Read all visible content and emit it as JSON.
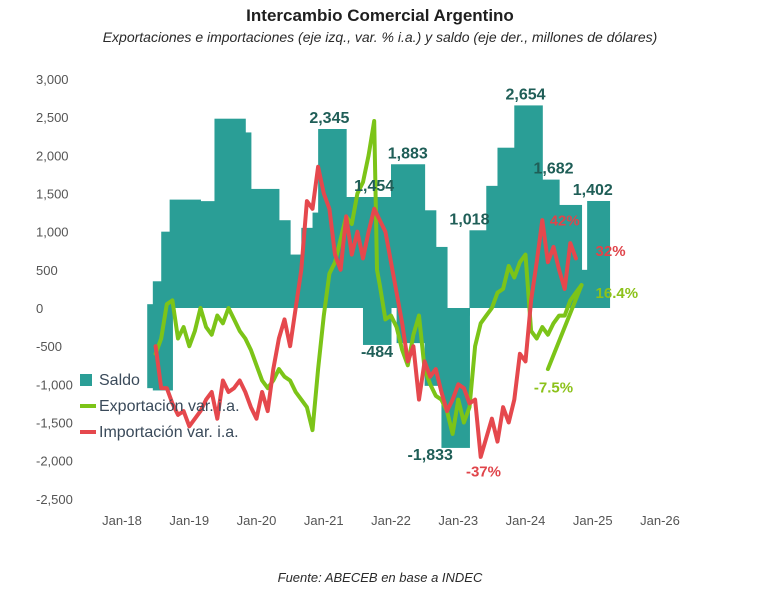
{
  "title": "Intercambio Comercial Argentino",
  "subtitle": "Exportaciones e importaciones (eje izq., var. % i.a.) y saldo (eje der., millones de dólares)",
  "source": "Fuente: ABECEB en base a INDEC",
  "chart_data": {
    "type": "bar+line",
    "title": "Intercambio Comercial Argentino",
    "subtitle": "Exportaciones e importaciones (eje izq., var. % i.a.) y saldo (eje der., millones de dólares)",
    "ylim": [
      -2500,
      3000
    ],
    "yticks": [
      3000,
      2500,
      2000,
      1500,
      1000,
      500,
      0,
      -500,
      -1000,
      -1500,
      -2000,
      -2500
    ],
    "ytick_labels": [
      "3,000",
      "2,500",
      "2,000",
      "1,500",
      "1,000",
      "500",
      "0",
      "-500",
      "-1,000",
      "-1,500",
      "-2,000",
      "-2,500"
    ],
    "xticks": [
      "Jan-18",
      "Jan-19",
      "Jan-20",
      "Jan-21",
      "Jan-22",
      "Jan-23",
      "Jan-24",
      "Jan-25",
      "Jan-26"
    ],
    "xlim_months": [
      0,
      96
    ],
    "grid": false,
    "legend_position": "left-middle",
    "colors": {
      "saldo": "#2a9e96",
      "exportacion": "#7cc418",
      "importacion": "#e5484d",
      "saldo_label": "#1f5e57"
    },
    "series": [
      {
        "name": "Saldo",
        "kind": "step-bar",
        "note": "segments: [start_month_since_Jan-18, end_month, value in USD millions]",
        "segments": [
          [
            4.5,
            5.5,
            -1050
          ],
          [
            5.5,
            9,
            -1080
          ],
          [
            4.5,
            5.5,
            50
          ],
          [
            5.5,
            7,
            350
          ],
          [
            7,
            8.5,
            1000
          ],
          [
            8.5,
            14,
            1420
          ],
          [
            14,
            16.5,
            1400
          ],
          [
            16.5,
            22,
            2480
          ],
          [
            22,
            23,
            2300
          ],
          [
            23,
            28,
            1560
          ],
          [
            28,
            30,
            1150
          ],
          [
            30,
            32,
            700
          ],
          [
            32,
            34,
            1050
          ],
          [
            34,
            35,
            1250
          ],
          [
            35,
            40,
            2345
          ],
          [
            40,
            42,
            1454
          ],
          [
            42,
            48,
            1454
          ],
          [
            38,
            42,
            0
          ],
          [
            43,
            45,
            -484
          ],
          [
            45,
            48,
            -484
          ],
          [
            48,
            54,
            1883
          ],
          [
            54,
            56,
            1280
          ],
          [
            56,
            58,
            800
          ],
          [
            58,
            62,
            -100
          ],
          [
            53,
            58,
            0
          ],
          [
            49,
            54,
            -460
          ],
          [
            54,
            57,
            -1020
          ],
          [
            57,
            62,
            -1833
          ],
          [
            62,
            65,
            1018
          ],
          [
            65,
            67,
            1600
          ],
          [
            67,
            70,
            2100
          ],
          [
            70,
            75,
            2654
          ],
          [
            75,
            78,
            1682
          ],
          [
            78,
            82,
            1350
          ],
          [
            82,
            83,
            500
          ],
          [
            83,
            87,
            1402
          ]
        ]
      },
      {
        "name": "Exportación var. i.a.",
        "kind": "line",
        "points": [
          [
            6,
            -600
          ],
          [
            7,
            -400
          ],
          [
            8,
            50
          ],
          [
            9,
            100
          ],
          [
            10,
            -400
          ],
          [
            11,
            -250
          ],
          [
            12,
            -500
          ],
          [
            13,
            -300
          ],
          [
            14,
            0
          ],
          [
            15,
            -250
          ],
          [
            16,
            -350
          ],
          [
            17,
            -100
          ],
          [
            18,
            -200
          ],
          [
            19,
            0
          ],
          [
            20,
            -150
          ],
          [
            21,
            -300
          ],
          [
            22,
            -400
          ],
          [
            23,
            -550
          ],
          [
            24,
            -750
          ],
          [
            25,
            -950
          ],
          [
            26,
            -1050
          ],
          [
            27,
            -950
          ],
          [
            28,
            -800
          ],
          [
            29,
            -900
          ],
          [
            30,
            -950
          ],
          [
            31,
            -1100
          ],
          [
            32,
            -1200
          ],
          [
            33,
            -1300
          ],
          [
            34,
            -1600
          ],
          [
            35,
            -800
          ],
          [
            36,
            -100
          ],
          [
            37,
            450
          ],
          [
            38,
            600
          ],
          [
            39,
            900
          ],
          [
            40,
            1200
          ],
          [
            41,
            1100
          ],
          [
            42,
            1500
          ],
          [
            43,
            1650
          ],
          [
            44,
            2000
          ],
          [
            45,
            2450
          ],
          [
            45.5,
            500
          ],
          [
            46,
            300
          ],
          [
            47,
            -150
          ],
          [
            48,
            -100
          ],
          [
            49,
            -250
          ],
          [
            50,
            -550
          ],
          [
            51,
            -750
          ],
          [
            52,
            -350
          ],
          [
            53,
            -100
          ],
          [
            54,
            -800
          ],
          [
            55,
            -1000
          ],
          [
            56,
            -1150
          ],
          [
            57,
            -1200
          ],
          [
            58,
            -1350
          ],
          [
            59,
            -1650
          ],
          [
            60,
            -1200
          ],
          [
            61,
            -1500
          ],
          [
            62,
            -1300
          ],
          [
            63,
            -500
          ],
          [
            64,
            -200
          ],
          [
            65,
            -100
          ],
          [
            66,
            0
          ],
          [
            67,
            200
          ],
          [
            68,
            250
          ],
          [
            69,
            550
          ],
          [
            70,
            400
          ],
          [
            71,
            600
          ],
          [
            72,
            700
          ],
          [
            73,
            -300
          ],
          [
            74,
            -400
          ],
          [
            75,
            -250
          ],
          [
            76,
            -350
          ],
          [
            77,
            -200
          ],
          [
            78,
            -100
          ],
          [
            79,
            -100
          ],
          [
            80,
            100
          ],
          [
            81,
            200
          ],
          [
            82,
            300
          ]
        ],
        "end_label": "16.4%",
        "min_label": "-7.5%"
      },
      {
        "name": "Importación var. i.a.",
        "kind": "line",
        "points": [
          [
            6,
            -500
          ],
          [
            7,
            -1050
          ],
          [
            8,
            -1050
          ],
          [
            9,
            -1250
          ],
          [
            10,
            -1400
          ],
          [
            11,
            -1350
          ],
          [
            12,
            -1550
          ],
          [
            13,
            -1450
          ],
          [
            14,
            -1350
          ],
          [
            15,
            -1200
          ],
          [
            16,
            -1100
          ],
          [
            17,
            -1450
          ],
          [
            18,
            -950
          ],
          [
            19,
            -1100
          ],
          [
            20,
            -1050
          ],
          [
            21,
            -950
          ],
          [
            22,
            -1100
          ],
          [
            23,
            -1300
          ],
          [
            24,
            -1450
          ],
          [
            25,
            -1100
          ],
          [
            26,
            -1350
          ],
          [
            27,
            -800
          ],
          [
            28,
            -400
          ],
          [
            29,
            -150
          ],
          [
            30,
            -500
          ],
          [
            31,
            0
          ],
          [
            32,
            500
          ],
          [
            33,
            1400
          ],
          [
            34,
            1300
          ],
          [
            35,
            1850
          ],
          [
            36,
            1500
          ],
          [
            37,
            1300
          ],
          [
            38,
            700
          ],
          [
            39,
            500
          ],
          [
            40,
            1200
          ],
          [
            41,
            700
          ],
          [
            42,
            1000
          ],
          [
            43,
            650
          ],
          [
            44,
            1000
          ],
          [
            45,
            1300
          ],
          [
            46,
            1150
          ],
          [
            47,
            1000
          ],
          [
            48,
            600
          ],
          [
            49,
            200
          ],
          [
            50,
            -200
          ],
          [
            51,
            -700
          ],
          [
            52,
            -500
          ],
          [
            53,
            -1200
          ],
          [
            54,
            -700
          ],
          [
            55,
            -900
          ],
          [
            56,
            -800
          ],
          [
            57,
            -1100
          ],
          [
            58,
            -1350
          ],
          [
            59,
            -1200
          ],
          [
            60,
            -1000
          ],
          [
            61,
            -1050
          ],
          [
            62,
            -1250
          ],
          [
            63,
            -1200
          ],
          [
            64,
            -1950
          ],
          [
            65,
            -1700
          ],
          [
            66,
            -1450
          ],
          [
            67,
            -1750
          ],
          [
            68,
            -1300
          ],
          [
            69,
            -1500
          ],
          [
            70,
            -1200
          ],
          [
            71,
            -600
          ],
          [
            72,
            -700
          ],
          [
            73,
            100
          ],
          [
            74,
            600
          ],
          [
            75,
            1150
          ],
          [
            76,
            600
          ],
          [
            77,
            800
          ],
          [
            78,
            500
          ],
          [
            79,
            250
          ],
          [
            80,
            850
          ],
          [
            81,
            650
          ]
        ],
        "peak_label": "42%",
        "end_label": "32%",
        "min_label": "-37%"
      }
    ],
    "annotations": [
      {
        "text": "2,345",
        "series": "Saldo",
        "month": 37,
        "value": 2345
      },
      {
        "text": "1,454",
        "series": "Saldo",
        "month": 45,
        "value": 1454
      },
      {
        "text": "1,883",
        "series": "Saldo",
        "month": 51,
        "value": 1883
      },
      {
        "text": "-484",
        "series": "Saldo",
        "month": 45.5,
        "value": -484
      },
      {
        "text": "-1,833",
        "series": "Saldo",
        "month": 55,
        "value": -1833
      },
      {
        "text": "1,018",
        "series": "Saldo",
        "month": 62,
        "value": 1018
      },
      {
        "text": "2,654",
        "series": "Saldo",
        "month": 72,
        "value": 2654
      },
      {
        "text": "1,682",
        "series": "Saldo",
        "month": 77,
        "value": 1682
      },
      {
        "text": "1,402",
        "series": "Saldo",
        "month": 84,
        "value": 1402
      },
      {
        "text": "42%",
        "series": "Importación var. i.a.",
        "month": 79,
        "value": 1000
      },
      {
        "text": "32%",
        "series": "Importación var. i.a.",
        "month": 84.5,
        "value": 600
      },
      {
        "text": "16.4%",
        "series": "Exportación var. i.a.",
        "month": 84.5,
        "value": 50
      },
      {
        "text": "-7.5%",
        "series": "Exportación var. i.a.",
        "month": 77,
        "value": -950
      },
      {
        "text": "-37%",
        "series": "Importación var. i.a.",
        "month": 64.5,
        "value": -2050
      }
    ]
  },
  "legend": [
    {
      "label": "Saldo",
      "type": "square",
      "color": "#2a9e96"
    },
    {
      "label": "Exportación var. i.a.",
      "type": "line",
      "color": "#7cc418"
    },
    {
      "label": "Importación var. i.a.",
      "type": "line",
      "color": "#e5484d"
    }
  ]
}
